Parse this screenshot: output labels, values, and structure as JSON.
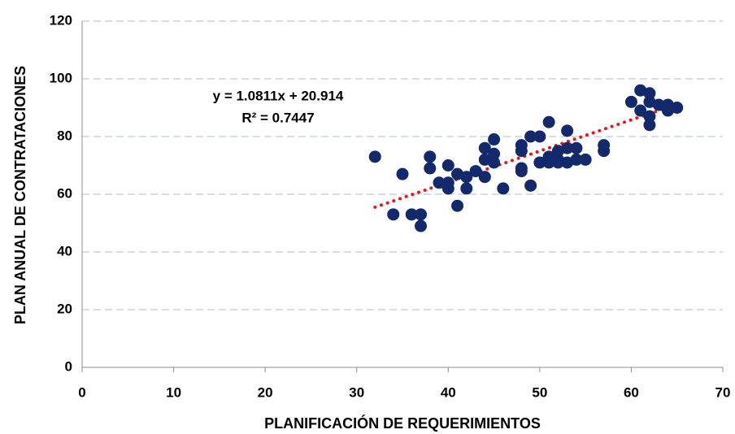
{
  "chart_data": {
    "type": "scatter",
    "x_label": "PLANIFICACIÓN DE REQUERIMIENTOS",
    "y_label": "PLAN ANUAL DE CONTRATACIONES",
    "xlim": [
      0,
      70
    ],
    "xticks": [
      0,
      10,
      20,
      30,
      40,
      50,
      60,
      70
    ],
    "ylim": [
      0,
      120
    ],
    "yticks": [
      0,
      20,
      40,
      60,
      80,
      100,
      120
    ],
    "grid": true,
    "series": [
      {
        "color": "#13296b",
        "x": [
          32,
          34,
          35,
          36,
          37,
          37,
          38,
          38,
          39,
          40,
          40,
          40,
          41,
          41,
          42,
          42,
          43,
          44,
          44,
          44,
          45,
          45,
          45,
          46,
          48,
          48,
          48,
          48,
          49,
          49,
          50,
          50,
          51,
          51,
          51,
          52,
          52,
          52,
          53,
          53,
          53,
          54,
          54,
          55,
          57,
          57,
          60,
          61,
          61,
          62,
          62,
          62,
          62,
          63,
          64,
          64,
          65
        ],
        "values": [
          73,
          53,
          67,
          53,
          53,
          49,
          73,
          69,
          64,
          70,
          64,
          62,
          67,
          56,
          66,
          62,
          68,
          76,
          72,
          66,
          79,
          74,
          71,
          62,
          77,
          75,
          69,
          68,
          80,
          63,
          80,
          71,
          85,
          71,
          73,
          72,
          75,
          71,
          82,
          76,
          71,
          76,
          72,
          72,
          77,
          75,
          92,
          96,
          89,
          95,
          92,
          87,
          84,
          91,
          91,
          89,
          90
        ]
      }
    ],
    "trendline": {
      "color": "#e3161b",
      "slope": 1.0811,
      "intercept": 20.914,
      "xrange": [
        32,
        64
      ],
      "equation": "y = 1.0811x + 20.914",
      "r2": "R² = 0.7447"
    }
  }
}
